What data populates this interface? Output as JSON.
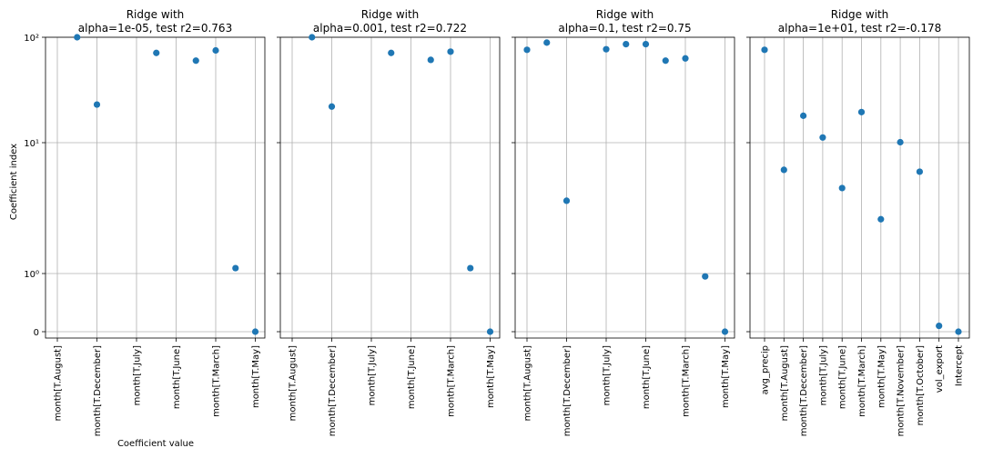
{
  "figure": {
    "xlabel": "Coefficient value",
    "ylabel": "Coefficient index"
  },
  "marker_color": "#1f77b4",
  "chart_data": [
    {
      "type": "scatter",
      "title_line1": "Ridge with",
      "title_line2": "alpha=1e-05, test r2=0.763",
      "yscale": "symlog",
      "ylim": [
        -0.1,
        100
      ],
      "y_ticks": [
        {
          "v": 0,
          "label": "0"
        },
        {
          "v": 1,
          "label": "10⁰"
        },
        {
          "v": 10,
          "label": "10¹"
        },
        {
          "v": 100,
          "label": "10²"
        }
      ],
      "categories": [
        "month[T.August]",
        "month[T.December]",
        "month[T.July]",
        "month[T.June]",
        "month[T.March]",
        "month[T.May]"
      ],
      "x": [
        0.5,
        1,
        2.5,
        3.5,
        4,
        4.5,
        5
      ],
      "y": [
        100,
        23,
        71,
        60,
        75,
        1.1,
        0
      ]
    },
    {
      "type": "scatter",
      "title_line1": "Ridge with",
      "title_line2": "alpha=0.001, test r2=0.722",
      "yscale": "symlog",
      "ylim": [
        -0.1,
        100
      ],
      "y_ticks": [
        {
          "v": 0,
          "label": "0"
        },
        {
          "v": 1,
          "label": "10⁰"
        },
        {
          "v": 10,
          "label": "10¹"
        },
        {
          "v": 100,
          "label": "10²"
        }
      ],
      "categories": [
        "month[T.August]",
        "month[T.December]",
        "month[T.July]",
        "month[T.June]",
        "month[T.March]",
        "month[T.May]"
      ],
      "x": [
        0.5,
        1,
        2.5,
        3.5,
        4,
        4.5,
        5
      ],
      "y": [
        100,
        22,
        71,
        61,
        73,
        1.1,
        0
      ]
    },
    {
      "type": "scatter",
      "title_line1": "Ridge with",
      "title_line2": "alpha=0.1, test r2=0.75",
      "yscale": "symlog",
      "ylim": [
        -0.1,
        100
      ],
      "y_ticks": [
        {
          "v": 0,
          "label": "0"
        },
        {
          "v": 1,
          "label": "10⁰"
        },
        {
          "v": 10,
          "label": "10¹"
        },
        {
          "v": 100,
          "label": "10²"
        }
      ],
      "categories": [
        "month[T.August]",
        "month[T.December]",
        "month[T.July]",
        "month[T.June]",
        "month[T.March]",
        "month[T.May]"
      ],
      "x": [
        0,
        0.5,
        1,
        2,
        2.5,
        3,
        3.5,
        4,
        4.5,
        5
      ],
      "y": [
        76,
        89,
        3.6,
        77,
        86,
        86,
        60,
        63,
        0.95,
        0
      ]
    },
    {
      "type": "scatter",
      "title_line1": "Ridge with",
      "title_line2": "alpha=1e+01, test r2=-0.178",
      "yscale": "symlog",
      "ylim": [
        -0.1,
        100
      ],
      "y_ticks": [
        {
          "v": 0,
          "label": "0"
        },
        {
          "v": 1,
          "label": "10⁰"
        },
        {
          "v": 10,
          "label": "10¹"
        },
        {
          "v": 100,
          "label": "10²"
        }
      ],
      "categories": [
        "avg_precip",
        "month[T.August]",
        "month[T.December]",
        "month[T.July]",
        "month[T.June]",
        "month[T.March]",
        "month[T.May]",
        "month[T.November]",
        "month[T.October]",
        "vol_export",
        "Intercept"
      ],
      "x": [
        0,
        1,
        2,
        3,
        4,
        5,
        6,
        7,
        8,
        9,
        10
      ],
      "y": [
        76,
        6.2,
        18,
        11.2,
        4.5,
        19.5,
        2.6,
        10.1,
        6.0,
        0.1,
        0
      ]
    }
  ]
}
